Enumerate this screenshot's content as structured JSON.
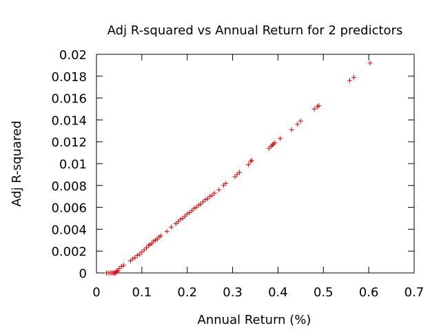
{
  "chart_data": {
    "type": "scatter",
    "title": "Adj R-squared vs Annual Return for 2 predictors",
    "xlabel": "Annual Return (%)",
    "ylabel": "Adj R-squared",
    "xlim": [
      0,
      0.7
    ],
    "ylim": [
      0,
      0.02
    ],
    "x_ticks": [
      "0",
      "0.1",
      "0.2",
      "0.3",
      "0.4",
      "0.5",
      "0.6",
      "0.7"
    ],
    "y_ticks": [
      "0",
      "0.002",
      "0.004",
      "0.006",
      "0.008",
      "0.01",
      "0.012",
      "0.014",
      "0.016",
      "0.018",
      "0.02"
    ],
    "grid": false,
    "marker": "+",
    "series": [
      {
        "color": "#e00000",
        "points": [
          [
            0.022,
            0.0
          ],
          [
            0.026,
            0.0
          ],
          [
            0.03,
            0.0
          ],
          [
            0.033,
            0.0
          ],
          [
            0.036,
            0.0
          ],
          [
            0.038,
            0.0
          ],
          [
            0.04,
            0.0
          ],
          [
            0.042,
            0.0
          ],
          [
            0.043,
            0.0001
          ],
          [
            0.045,
            0.0001
          ],
          [
            0.047,
            0.0002
          ],
          [
            0.05,
            0.0004
          ],
          [
            0.055,
            0.0006
          ],
          [
            0.06,
            0.0007
          ],
          [
            0.075,
            0.0011
          ],
          [
            0.08,
            0.0013
          ],
          [
            0.085,
            0.0014
          ],
          [
            0.09,
            0.0016
          ],
          [
            0.095,
            0.0017
          ],
          [
            0.1,
            0.0019
          ],
          [
            0.105,
            0.0021
          ],
          [
            0.11,
            0.0023
          ],
          [
            0.115,
            0.0025
          ],
          [
            0.118,
            0.0026
          ],
          [
            0.122,
            0.0027
          ],
          [
            0.126,
            0.0029
          ],
          [
            0.13,
            0.003
          ],
          [
            0.134,
            0.0031
          ],
          [
            0.138,
            0.0033
          ],
          [
            0.142,
            0.0034
          ],
          [
            0.155,
            0.0038
          ],
          [
            0.165,
            0.0042
          ],
          [
            0.175,
            0.0045
          ],
          [
            0.18,
            0.0047
          ],
          [
            0.185,
            0.0049
          ],
          [
            0.19,
            0.005
          ],
          [
            0.195,
            0.0052
          ],
          [
            0.2,
            0.0054
          ],
          [
            0.205,
            0.0055
          ],
          [
            0.21,
            0.0057
          ],
          [
            0.215,
            0.0059
          ],
          [
            0.22,
            0.006
          ],
          [
            0.225,
            0.0062
          ],
          [
            0.23,
            0.0063
          ],
          [
            0.235,
            0.0065
          ],
          [
            0.24,
            0.0067
          ],
          [
            0.245,
            0.0068
          ],
          [
            0.25,
            0.007
          ],
          [
            0.255,
            0.0071
          ],
          [
            0.26,
            0.0073
          ],
          [
            0.27,
            0.0076
          ],
          [
            0.28,
            0.008
          ],
          [
            0.285,
            0.0082
          ],
          [
            0.305,
            0.0088
          ],
          [
            0.31,
            0.009
          ],
          [
            0.315,
            0.0092
          ],
          [
            0.335,
            0.0099
          ],
          [
            0.34,
            0.0102
          ],
          [
            0.342,
            0.0103
          ],
          [
            0.38,
            0.0114
          ],
          [
            0.385,
            0.0116
          ],
          [
            0.388,
            0.0117
          ],
          [
            0.39,
            0.0118
          ],
          [
            0.393,
            0.0119
          ],
          [
            0.405,
            0.0123
          ],
          [
            0.43,
            0.0131
          ],
          [
            0.443,
            0.0136
          ],
          [
            0.45,
            0.0139
          ],
          [
            0.48,
            0.015
          ],
          [
            0.487,
            0.0152
          ],
          [
            0.49,
            0.0153
          ],
          [
            0.558,
            0.0176
          ],
          [
            0.567,
            0.0179
          ],
          [
            0.603,
            0.0192
          ]
        ]
      }
    ]
  }
}
